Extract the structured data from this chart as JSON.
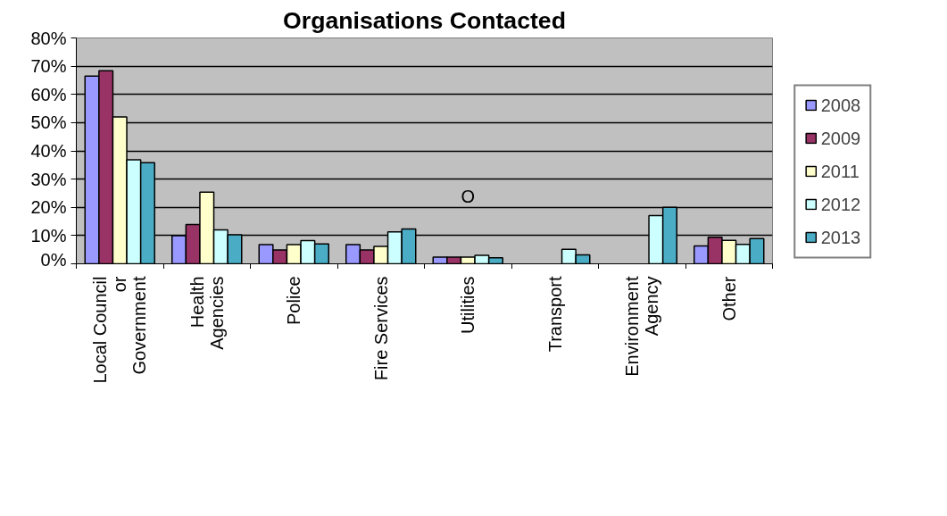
{
  "chart_data": {
    "type": "bar",
    "title": "Organisations Contacted",
    "categories": [
      "Local Council\nor\nGovernment",
      "Health\nAgencies",
      "Police",
      "Fire Services",
      "Utilities",
      "Transport",
      "Environment\nAgency",
      "Other"
    ],
    "series": [
      {
        "name": "2008",
        "color": "#9999ff",
        "values": [
          66.5,
          10,
          6.8,
          6.8,
          2.4,
          null,
          null,
          6.3
        ]
      },
      {
        "name": "2009",
        "color": "#993366",
        "values": [
          68.4,
          13.9,
          4.9,
          4.9,
          2.4,
          null,
          null,
          9.4
        ]
      },
      {
        "name": "2011",
        "color": "#ffffcc",
        "values": [
          52,
          25.4,
          6.8,
          6.2,
          2.4,
          null,
          null,
          8.3
        ]
      },
      {
        "name": "2012",
        "color": "#ccffff",
        "values": [
          36.8,
          12,
          8.2,
          11.3,
          3,
          5.1,
          17.1,
          6.9
        ]
      },
      {
        "name": "2013",
        "color": "#4bacc6",
        "values": [
          35.8,
          10.3,
          7,
          12.3,
          2.1,
          3.2,
          20,
          8.9
        ]
      }
    ],
    "ylim": [
      0,
      80
    ],
    "yticks": [
      {
        "value": 0,
        "label": "0%"
      },
      {
        "value": 10,
        "label": "10%"
      },
      {
        "value": 20,
        "label": "20%"
      },
      {
        "value": 30,
        "label": "30%"
      },
      {
        "value": 40,
        "label": "40%"
      },
      {
        "value": 50,
        "label": "50%"
      },
      {
        "value": 60,
        "label": "60%"
      },
      {
        "value": 70,
        "label": "70%"
      },
      {
        "value": 80,
        "label": "80%"
      }
    ],
    "annotations": [
      "O"
    ],
    "grid": "y",
    "legend": "right"
  }
}
